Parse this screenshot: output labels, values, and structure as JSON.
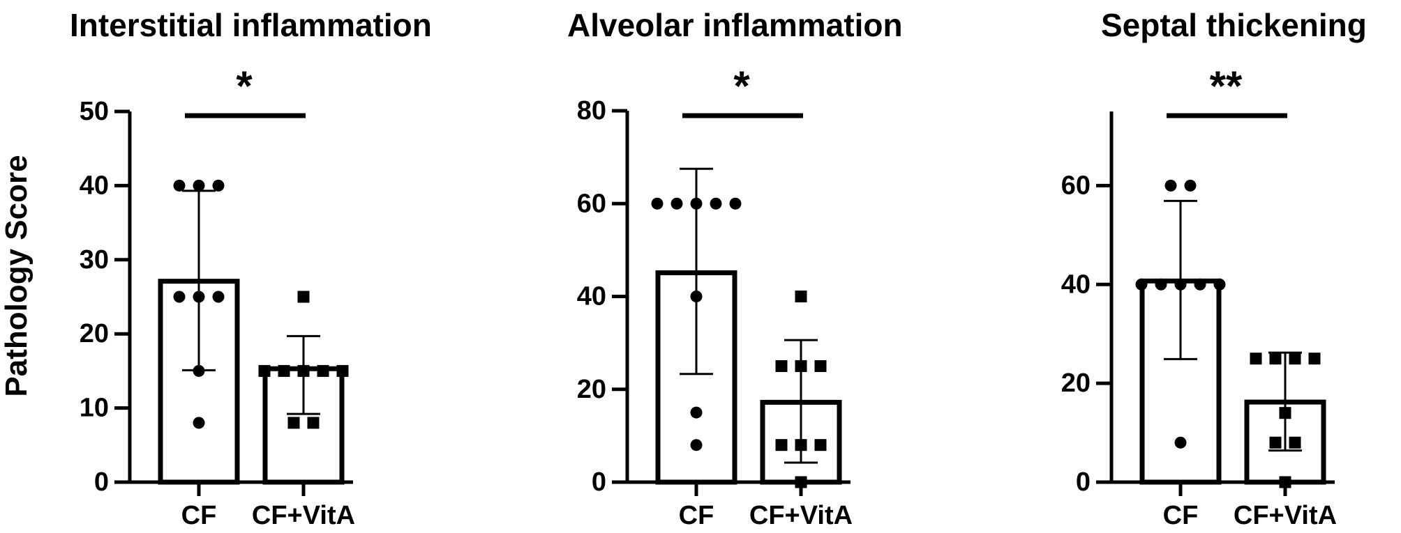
{
  "ylabel": "Pathology Score",
  "chart_data": [
    {
      "type": "bar",
      "title": "Interstitial inflammation",
      "ylabel": "Pathology Score",
      "categories": [
        "CF",
        "CF+VitA"
      ],
      "ylim": [
        0,
        50
      ],
      "yticks": [
        0,
        10,
        20,
        30,
        40,
        50
      ],
      "yticks_labeled": true,
      "bars": [
        {
          "category": "CF",
          "mean": 27.1,
          "sd_high": 39.3,
          "sd_low": 15.1,
          "marker": "circle",
          "points": [
            40,
            40,
            40,
            25,
            25,
            25,
            15,
            8
          ]
        },
        {
          "category": "CF+VitA",
          "mean": 15.3,
          "sd_high": 19.7,
          "sd_low": 9.2,
          "marker": "square",
          "points": [
            25,
            15,
            15,
            15,
            15,
            15,
            8,
            8
          ]
        }
      ],
      "significance": "*"
    },
    {
      "type": "bar",
      "title": "Alveolar inflammation",
      "categories": [
        "CF",
        "CF+VitA"
      ],
      "ylim": [
        0,
        80
      ],
      "yticks": [
        0,
        20,
        40,
        60,
        80
      ],
      "yticks_labeled": true,
      "bars": [
        {
          "category": "CF",
          "mean": 45.1,
          "sd_high": 67.5,
          "sd_low": 23.3,
          "marker": "circle",
          "points": [
            60,
            60,
            60,
            60,
            60,
            40,
            15,
            8
          ]
        },
        {
          "category": "CF+VitA",
          "mean": 17.2,
          "sd_high": 30.6,
          "sd_low": 4.2,
          "marker": "square",
          "points": [
            40,
            25,
            25,
            25,
            8,
            8,
            8,
            0
          ]
        }
      ],
      "significance": "*"
    },
    {
      "type": "bar",
      "title": "Septal thickening",
      "categories": [
        "CF",
        "CF+VitA"
      ],
      "ylim": [
        0,
        75
      ],
      "yticks": [
        0,
        20,
        40,
        60
      ],
      "yticks_labeled": true,
      "bars": [
        {
          "category": "CF",
          "mean": 40.7,
          "sd_high": 56.9,
          "sd_low": 24.9,
          "marker": "circle",
          "points": [
            60,
            60,
            40,
            40,
            40,
            40,
            40,
            8
          ]
        },
        {
          "category": "CF+VitA",
          "mean": 16.2,
          "sd_high": 26.2,
          "sd_low": 6.4,
          "marker": "square",
          "points": [
            25,
            25,
            25,
            25,
            14,
            8,
            8,
            0
          ]
        }
      ],
      "significance": "**"
    }
  ]
}
